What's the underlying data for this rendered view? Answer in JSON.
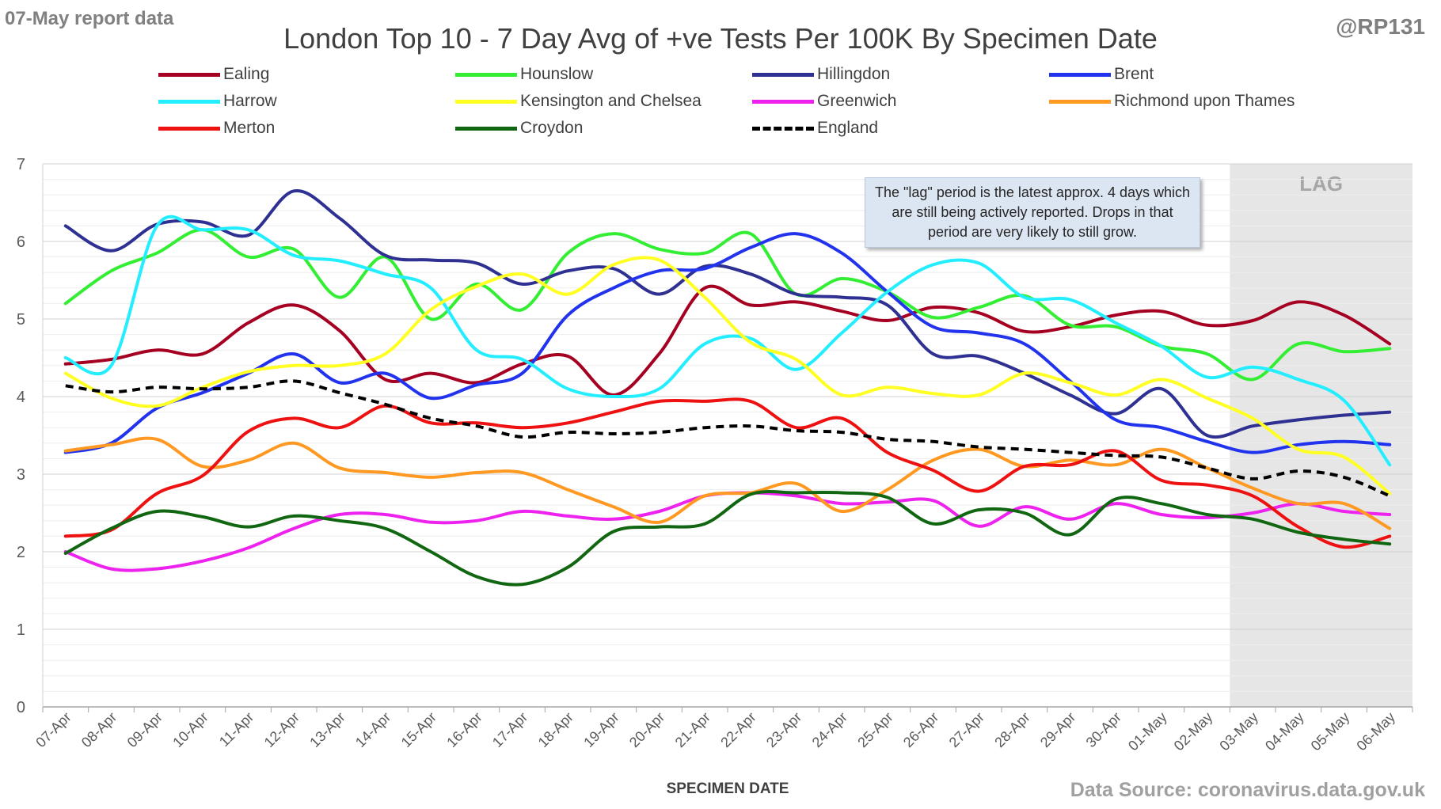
{
  "header": {
    "report_date": "07-May report data",
    "title": "London Top 10 - 7 Day Avg of +ve Tests Per 100K By Specimen Date",
    "handle": "@RP131"
  },
  "footer": {
    "source": "Data Source: coronavirus.data.gov.uk"
  },
  "note": "The \"lag\" period is the latest approx. 4 days which are still being actively reported. Drops in that period are very likely to still grow.",
  "chart_data": {
    "type": "line",
    "xlabel": "SPECIMEN DATE",
    "ylabel": "",
    "ylim": [
      0,
      7
    ],
    "y_ticks": [
      0,
      1,
      2,
      3,
      4,
      5,
      6,
      7
    ],
    "grid": true,
    "legend_position": "top",
    "lag_label": "LAG",
    "lag_start_category": "03-May",
    "categories": [
      "07-Apr",
      "08-Apr",
      "09-Apr",
      "10-Apr",
      "11-Apr",
      "12-Apr",
      "13-Apr",
      "14-Apr",
      "15-Apr",
      "16-Apr",
      "17-Apr",
      "18-Apr",
      "19-Apr",
      "20-Apr",
      "21-Apr",
      "22-Apr",
      "23-Apr",
      "24-Apr",
      "25-Apr",
      "26-Apr",
      "27-Apr",
      "28-Apr",
      "29-Apr",
      "30-Apr",
      "01-May",
      "02-May",
      "03-May",
      "04-May",
      "05-May",
      "06-May"
    ],
    "series": [
      {
        "name": "Ealing",
        "color": "#a50021",
        "dashed": false,
        "values": [
          4.42,
          4.48,
          4.6,
          4.55,
          4.95,
          5.18,
          4.85,
          4.22,
          4.3,
          4.18,
          4.42,
          4.52,
          4.02,
          4.55,
          5.4,
          5.18,
          5.22,
          5.1,
          4.98,
          5.15,
          5.08,
          4.84,
          4.9,
          5.05,
          5.1,
          4.92,
          4.98,
          5.22,
          5.05,
          4.68
        ]
      },
      {
        "name": "Hounslow",
        "color": "#33ee33",
        "dashed": false,
        "values": [
          5.2,
          5.62,
          5.85,
          6.15,
          5.8,
          5.9,
          5.28,
          5.8,
          5.0,
          5.45,
          5.12,
          5.85,
          6.1,
          5.9,
          5.85,
          6.1,
          5.32,
          5.52,
          5.35,
          5.02,
          5.15,
          5.3,
          4.92,
          4.9,
          4.65,
          4.55,
          4.22,
          4.68,
          4.58,
          4.62
        ]
      },
      {
        "name": "Hillingdon",
        "color": "#2e3192",
        "dashed": false,
        "values": [
          6.2,
          5.88,
          6.22,
          6.25,
          6.08,
          6.65,
          6.3,
          5.82,
          5.76,
          5.72,
          5.45,
          5.62,
          5.65,
          5.32,
          5.68,
          5.58,
          5.32,
          5.28,
          5.18,
          4.55,
          4.52,
          4.3,
          4.02,
          3.78,
          4.1,
          3.5,
          3.62,
          3.7,
          3.76,
          3.8
        ]
      },
      {
        "name": "Brent",
        "color": "#2233ee",
        "dashed": false,
        "values": [
          3.28,
          3.4,
          3.85,
          4.05,
          4.3,
          4.55,
          4.18,
          4.3,
          3.98,
          4.15,
          4.3,
          5.05,
          5.4,
          5.62,
          5.65,
          5.92,
          6.1,
          5.85,
          5.35,
          4.9,
          4.82,
          4.68,
          4.2,
          3.7,
          3.6,
          3.42,
          3.28,
          3.38,
          3.42,
          3.38
        ]
      },
      {
        "name": "Harrow",
        "color": "#22eeff",
        "dashed": false,
        "values": [
          4.5,
          4.4,
          6.2,
          6.15,
          6.15,
          5.82,
          5.75,
          5.58,
          5.4,
          4.6,
          4.48,
          4.1,
          4.0,
          4.1,
          4.68,
          4.75,
          4.35,
          4.82,
          5.35,
          5.7,
          5.72,
          5.28,
          5.25,
          4.95,
          4.65,
          4.25,
          4.38,
          4.22,
          3.95,
          3.12
        ]
      },
      {
        "name": "Kensington and Chelsea",
        "color": "#ffff22",
        "dashed": false,
        "values": [
          4.3,
          3.98,
          3.88,
          4.12,
          4.32,
          4.4,
          4.4,
          4.55,
          5.12,
          5.42,
          5.58,
          5.32,
          5.7,
          5.76,
          5.28,
          4.7,
          4.48,
          4.02,
          4.12,
          4.04,
          4.02,
          4.3,
          4.18,
          4.02,
          4.22,
          3.98,
          3.72,
          3.32,
          3.22,
          2.75
        ]
      },
      {
        "name": "Greenwich",
        "color": "#ee22ee",
        "dashed": false,
        "values": [
          2.0,
          1.78,
          1.78,
          1.88,
          2.05,
          2.3,
          2.48,
          2.48,
          2.38,
          2.4,
          2.52,
          2.46,
          2.42,
          2.52,
          2.72,
          2.76,
          2.72,
          2.62,
          2.64,
          2.66,
          2.33,
          2.58,
          2.42,
          2.62,
          2.48,
          2.44,
          2.5,
          2.62,
          2.52,
          2.48
        ]
      },
      {
        "name": "Richmond upon Thames",
        "color": "#ff9922",
        "dashed": false,
        "values": [
          3.3,
          3.38,
          3.45,
          3.1,
          3.18,
          3.4,
          3.08,
          3.02,
          2.96,
          3.02,
          3.02,
          2.8,
          2.58,
          2.38,
          2.72,
          2.76,
          2.88,
          2.52,
          2.8,
          3.18,
          3.32,
          3.1,
          3.18,
          3.12,
          3.32,
          3.08,
          2.82,
          2.62,
          2.62,
          2.3
        ]
      },
      {
        "name": "Merton",
        "color": "#ee1111",
        "dashed": false,
        "values": [
          2.2,
          2.28,
          2.75,
          2.98,
          3.55,
          3.72,
          3.6,
          3.88,
          3.66,
          3.66,
          3.6,
          3.66,
          3.8,
          3.94,
          3.94,
          3.94,
          3.6,
          3.72,
          3.28,
          3.05,
          2.78,
          3.1,
          3.12,
          3.3,
          2.92,
          2.86,
          2.72,
          2.32,
          2.06,
          2.2
        ]
      },
      {
        "name": "Croydon",
        "color": "#116611",
        "dashed": false,
        "values": [
          1.98,
          2.3,
          2.52,
          2.45,
          2.32,
          2.46,
          2.4,
          2.3,
          2.0,
          1.68,
          1.58,
          1.8,
          2.26,
          2.32,
          2.36,
          2.74,
          2.76,
          2.76,
          2.7,
          2.36,
          2.54,
          2.5,
          2.22,
          2.68,
          2.62,
          2.48,
          2.42,
          2.25,
          2.16,
          2.1
        ]
      },
      {
        "name": "England",
        "color": "#000000",
        "dashed": true,
        "values": [
          4.14,
          4.06,
          4.12,
          4.1,
          4.12,
          4.2,
          4.05,
          3.9,
          3.72,
          3.62,
          3.48,
          3.54,
          3.52,
          3.54,
          3.6,
          3.62,
          3.56,
          3.54,
          3.45,
          3.42,
          3.35,
          3.32,
          3.28,
          3.24,
          3.22,
          3.08,
          2.94,
          3.04,
          2.96,
          2.72
        ]
      }
    ]
  }
}
